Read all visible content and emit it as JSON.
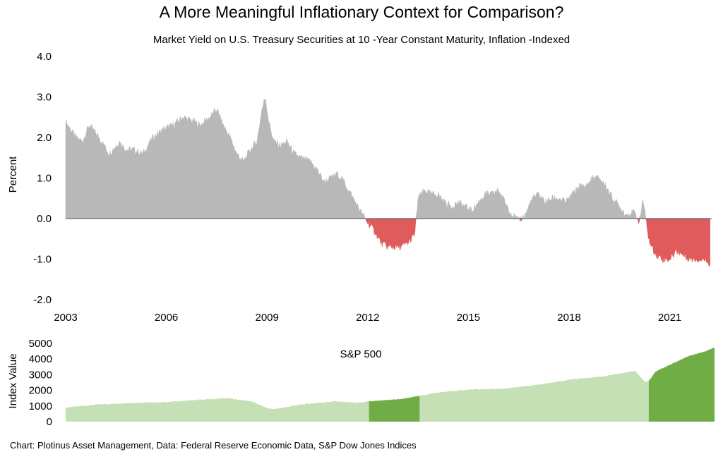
{
  "title": "A More Meaningful Inflationary Context for Comparison?",
  "subtitle": "Market Yield on U.S. Treasury Securities at 10 -Year Constant Maturity, Inflation -Indexed",
  "source": "Chart: Plotinus Asset Management, Data: Federal Reserve Economic Data, S&P Dow Jones Indices",
  "colors": {
    "positive": "#b9b8b8",
    "negative": "#e05b5b",
    "zero_line": "#2f5575",
    "sp_light": "#c5e0b4",
    "sp_dark": "#70ad47"
  },
  "chart_data": [
    {
      "type": "area",
      "ylabel": "Percent",
      "ylim": [
        -2.0,
        4.0
      ],
      "y_ticks": [
        "4.0",
        "3.0",
        "2.0",
        "1.0",
        "0.0",
        "-1.0",
        "-2.0"
      ],
      "x_ticks": [
        "2003",
        "2006",
        "2009",
        "2012",
        "2015",
        "2018",
        "2021"
      ],
      "xlim": [
        2003.0,
        2022.25
      ],
      "series": [
        {
          "x": [
            2003.0,
            2003.3,
            2003.5,
            2003.7,
            2004.0,
            2004.3,
            2004.6,
            2004.8,
            2005.0,
            2005.3,
            2005.6,
            2005.9,
            2006.2,
            2006.5,
            2006.8,
            2007.0,
            2007.3,
            2007.5,
            2007.7,
            2007.9,
            2008.1,
            2008.3,
            2008.5,
            2008.7,
            2008.85,
            2008.95,
            2009.05,
            2009.2,
            2009.4,
            2009.6,
            2009.8,
            2010.0,
            2010.3,
            2010.5,
            2010.7,
            2010.9,
            2011.1,
            2011.3,
            2011.5,
            2011.7,
            2011.85,
            2012.0,
            2012.2,
            2012.4,
            2012.6,
            2012.8,
            2013.0,
            2013.2,
            2013.4,
            2013.5,
            2013.7,
            2013.9,
            2014.1,
            2014.3,
            2014.5,
            2014.7,
            2014.9,
            2015.1,
            2015.3,
            2015.5,
            2015.7,
            2015.9,
            2016.1,
            2016.3,
            2016.5,
            2016.7,
            2016.9,
            2017.1,
            2017.3,
            2017.5,
            2017.7,
            2017.9,
            2018.1,
            2018.3,
            2018.5,
            2018.7,
            2018.9,
            2019.1,
            2019.3,
            2019.5,
            2019.7,
            2019.9,
            2020.0,
            2020.1,
            2020.2,
            2020.3,
            2020.4,
            2020.6,
            2020.8,
            2021.0,
            2021.2,
            2021.4,
            2021.6,
            2021.8,
            2022.0,
            2022.2
          ],
          "y": [
            2.4,
            2.0,
            1.9,
            2.3,
            2.0,
            1.6,
            1.9,
            1.7,
            1.7,
            1.6,
            2.0,
            2.2,
            2.3,
            2.5,
            2.4,
            2.3,
            2.5,
            2.7,
            2.3,
            2.0,
            1.6,
            1.4,
            1.7,
            1.9,
            2.7,
            3.0,
            2.4,
            1.9,
            1.8,
            1.9,
            1.6,
            1.5,
            1.4,
            1.2,
            0.9,
            1.0,
            1.1,
            0.9,
            0.6,
            0.3,
            0.1,
            -0.1,
            -0.3,
            -0.6,
            -0.7,
            -0.7,
            -0.7,
            -0.6,
            -0.4,
            0.5,
            0.7,
            0.6,
            0.6,
            0.4,
            0.3,
            0.4,
            0.3,
            0.2,
            0.4,
            0.6,
            0.6,
            0.7,
            0.4,
            0.1,
            -0.05,
            0.1,
            0.5,
            0.6,
            0.4,
            0.5,
            0.5,
            0.4,
            0.6,
            0.8,
            0.8,
            1.0,
            1.0,
            0.8,
            0.5,
            0.3,
            0.1,
            0.15,
            0.1,
            -0.1,
            0.5,
            -0.1,
            -0.6,
            -0.9,
            -1.0,
            -1.0,
            -0.8,
            -0.9,
            -1.0,
            -1.0,
            -1.0,
            -1.1
          ]
        }
      ]
    },
    {
      "type": "area",
      "ylabel": "Index Value",
      "ylim": [
        0,
        5000
      ],
      "y_ticks": [
        "5000",
        "4000",
        "3000",
        "2000",
        "1000",
        "0"
      ],
      "xlim": [
        2003.0,
        2022.25
      ],
      "series": [
        {
          "name": "S&P 500",
          "x": [
            2003.0,
            2004.0,
            2005.0,
            2006.0,
            2007.0,
            2007.8,
            2008.5,
            2009.0,
            2009.2,
            2010.0,
            2011.0,
            2011.7,
            2012.0,
            2013.0,
            2013.5,
            2014.0,
            2015.0,
            2016.0,
            2017.0,
            2018.0,
            2019.0,
            2019.9,
            2020.2,
            2020.3,
            2020.5,
            2021.0,
            2021.5,
            2022.0,
            2022.2
          ],
          "y": [
            900,
            1100,
            1200,
            1250,
            1400,
            1500,
            1300,
            850,
            800,
            1100,
            1300,
            1200,
            1300,
            1450,
            1650,
            1850,
            2050,
            2100,
            2350,
            2700,
            2900,
            3250,
            2500,
            2600,
            3200,
            3700,
            4200,
            4500,
            4700
          ]
        }
      ],
      "highlight_ranges": [
        [
          2012.0,
          2013.5
        ],
        [
          2020.3,
          2022.25
        ]
      ]
    }
  ]
}
